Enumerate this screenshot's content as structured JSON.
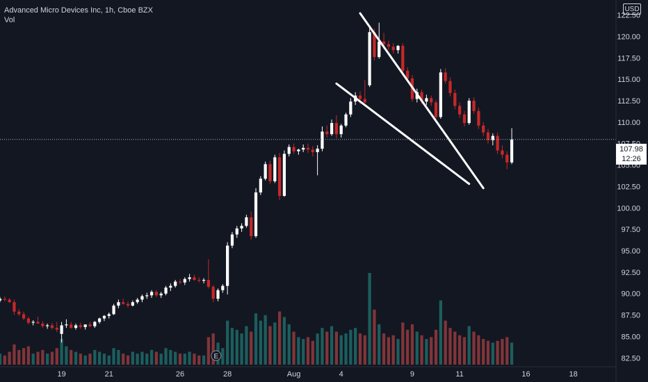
{
  "header": {
    "symbol_line": "Advanced Micro Devices Inc, 1h, Cboe BZX",
    "volume_label": "Vol"
  },
  "currency": "USD",
  "last_price": {
    "value": "107.98",
    "countdown": "12:26"
  },
  "event_marker": "E",
  "colors": {
    "background": "#131722",
    "up": "#ffffff",
    "down": "#c62828",
    "vol_up": "#26a69a",
    "vol_down": "#ef5350",
    "axis_text": "#d1d4dc",
    "trendline": "#ffffff"
  },
  "chart_data": {
    "type": "candlestick",
    "title": "Advanced Micro Devices Inc, 1h, Cboe BZX",
    "y_axis": {
      "position": "right",
      "range": [
        80.5,
        123.6
      ],
      "ticks": [
        "82.50",
        "85.00",
        "87.50",
        "90.00",
        "92.50",
        "95.00",
        "97.50",
        "100.00",
        "102.50",
        "105.00",
        "107.50",
        "110.00",
        "112.50",
        "115.00",
        "117.50",
        "120.00",
        "122.50",
        "125.00"
      ]
    },
    "x_axis": {
      "range": [
        0,
        130
      ],
      "ticks": [
        {
          "label": "19",
          "i": 13
        },
        {
          "label": "21",
          "i": 23
        },
        {
          "label": "26",
          "i": 38
        },
        {
          "label": "28",
          "i": 48
        },
        {
          "label": "Aug",
          "i": 62
        },
        {
          "label": "4",
          "i": 72
        },
        {
          "label": "9",
          "i": 87
        },
        {
          "label": "11",
          "i": 97
        },
        {
          "label": "16",
          "i": 111
        },
        {
          "label": "18",
          "i": 121
        }
      ]
    },
    "volume_max": 100,
    "candles": [
      [
        89.2,
        89.6,
        89.0,
        89.4,
        12
      ],
      [
        89.4,
        89.7,
        89.1,
        89.3,
        10
      ],
      [
        89.3,
        89.5,
        88.9,
        89.0,
        14
      ],
      [
        89.0,
        89.3,
        87.5,
        87.9,
        22
      ],
      [
        87.9,
        88.2,
        87.4,
        87.6,
        16
      ],
      [
        87.6,
        87.9,
        86.9,
        87.1,
        18
      ],
      [
        87.1,
        87.3,
        86.4,
        86.6,
        20
      ],
      [
        86.6,
        86.9,
        86.3,
        86.7,
        12
      ],
      [
        86.7,
        87.3,
        86.5,
        86.5,
        14
      ],
      [
        86.5,
        86.8,
        86.0,
        86.2,
        16
      ],
      [
        86.2,
        86.5,
        85.9,
        86.3,
        12
      ],
      [
        86.3,
        86.6,
        85.8,
        86.0,
        14
      ],
      [
        86.0,
        86.7,
        85.5,
        85.8,
        18
      ],
      [
        85.3,
        86.7,
        84.3,
        86.3,
        28
      ],
      [
        86.3,
        87.0,
        86.0,
        86.4,
        20
      ],
      [
        86.4,
        86.7,
        85.9,
        86.0,
        16
      ],
      [
        86.0,
        86.5,
        85.8,
        86.3,
        14
      ],
      [
        86.3,
        86.6,
        85.9,
        86.1,
        12
      ],
      [
        86.1,
        86.4,
        85.8,
        86.4,
        10
      ],
      [
        86.4,
        86.7,
        86.1,
        86.2,
        12
      ],
      [
        86.2,
        86.8,
        86.0,
        86.7,
        16
      ],
      [
        86.7,
        87.2,
        86.5,
        87.1,
        14
      ],
      [
        87.1,
        87.5,
        86.8,
        87.4,
        12
      ],
      [
        87.4,
        87.8,
        87.1,
        87.6,
        10
      ],
      [
        87.6,
        88.8,
        87.5,
        88.6,
        18
      ],
      [
        88.6,
        89.3,
        88.3,
        89.0,
        16
      ],
      [
        89.0,
        89.4,
        88.7,
        88.8,
        12
      ],
      [
        88.8,
        89.1,
        88.4,
        88.6,
        10
      ],
      [
        88.6,
        89.2,
        88.5,
        89.0,
        14
      ],
      [
        89.0,
        89.5,
        88.8,
        89.3,
        12
      ],
      [
        89.3,
        89.9,
        89.0,
        89.7,
        14
      ],
      [
        89.7,
        90.1,
        89.4,
        89.8,
        12
      ],
      [
        89.8,
        90.4,
        89.5,
        90.2,
        16
      ],
      [
        90.2,
        90.4,
        89.6,
        89.8,
        14
      ],
      [
        89.8,
        90.2,
        89.5,
        90.0,
        12
      ],
      [
        90.0,
        90.9,
        89.8,
        90.7,
        18
      ],
      [
        90.7,
        91.2,
        90.3,
        90.9,
        16
      ],
      [
        90.9,
        91.6,
        90.7,
        91.4,
        14
      ],
      [
        91.4,
        91.7,
        91.1,
        91.3,
        12
      ],
      [
        91.3,
        91.9,
        91.0,
        91.7,
        12
      ],
      [
        91.7,
        92.3,
        91.4,
        91.9,
        14
      ],
      [
        91.9,
        92.2,
        91.5,
        91.6,
        12
      ],
      [
        91.6,
        91.9,
        91.3,
        91.5,
        10
      ],
      [
        91.5,
        91.8,
        91.2,
        91.6,
        10
      ],
      [
        91.6,
        94.0,
        90.6,
        90.8,
        30
      ],
      [
        90.8,
        91.0,
        89.0,
        89.4,
        34
      ],
      [
        89.4,
        90.6,
        89.1,
        90.4,
        24
      ],
      [
        90.4,
        91.1,
        90.1,
        90.9,
        18
      ],
      [
        90.9,
        96.0,
        89.9,
        95.6,
        48
      ],
      [
        95.6,
        97.2,
        95.3,
        96.9,
        40
      ],
      [
        96.9,
        97.9,
        96.5,
        97.6,
        38
      ],
      [
        97.6,
        98.2,
        97.2,
        97.9,
        34
      ],
      [
        97.9,
        99.2,
        97.7,
        98.9,
        42
      ],
      [
        98.9,
        99.6,
        96.3,
        96.7,
        36
      ],
      [
        96.7,
        102.3,
        96.5,
        101.8,
        56
      ],
      [
        101.8,
        103.7,
        101.5,
        103.4,
        48
      ],
      [
        103.4,
        105.4,
        103.2,
        105.1,
        54
      ],
      [
        105.1,
        105.5,
        102.8,
        103.1,
        42
      ],
      [
        103.1,
        106.2,
        102.9,
        105.9,
        46
      ],
      [
        105.9,
        106.4,
        100.9,
        101.4,
        58
      ],
      [
        101.4,
        106.7,
        101.3,
        106.3,
        52
      ],
      [
        106.3,
        107.4,
        106.0,
        107.1,
        44
      ],
      [
        107.1,
        107.5,
        106.3,
        106.6,
        36
      ],
      [
        106.6,
        106.9,
        106.2,
        106.8,
        30
      ],
      [
        106.8,
        107.4,
        106.5,
        107.0,
        28
      ],
      [
        107.0,
        107.5,
        106.4,
        106.8,
        30
      ],
      [
        106.8,
        107.2,
        106.0,
        106.5,
        26
      ],
      [
        106.5,
        107.3,
        103.8,
        106.9,
        34
      ],
      [
        106.9,
        109.5,
        106.6,
        108.9,
        40
      ],
      [
        108.9,
        109.6,
        108.2,
        108.6,
        36
      ],
      [
        108.6,
        110.3,
        108.4,
        109.9,
        42
      ],
      [
        109.9,
        110.8,
        108.1,
        108.6,
        36
      ],
      [
        108.6,
        109.8,
        108.2,
        109.6,
        32
      ],
      [
        109.6,
        111.1,
        109.4,
        110.9,
        34
      ],
      [
        110.9,
        112.8,
        110.6,
        112.4,
        38
      ],
      [
        112.4,
        113.5,
        112.0,
        113.1,
        40
      ],
      [
        113.1,
        113.6,
        112.1,
        112.7,
        34
      ],
      [
        112.7,
        114.9,
        112.2,
        112.3,
        32
      ],
      [
        114.3,
        121.2,
        114.1,
        120.5,
        100
      ],
      [
        120.5,
        120.9,
        117.2,
        117.6,
        60
      ],
      [
        117.6,
        121.6,
        117.4,
        119.4,
        44
      ],
      [
        119.4,
        120.4,
        118.5,
        119.1,
        34
      ],
      [
        119.1,
        119.5,
        118.4,
        118.8,
        30
      ],
      [
        118.8,
        119.2,
        118.0,
        118.4,
        32
      ],
      [
        118.4,
        119.0,
        118.0,
        118.9,
        28
      ],
      [
        118.9,
        119.2,
        115.5,
        116.0,
        46
      ],
      [
        116.0,
        116.4,
        114.7,
        115.1,
        38
      ],
      [
        115.1,
        115.5,
        112.4,
        112.7,
        44
      ],
      [
        112.7,
        113.9,
        112.3,
        113.5,
        36
      ],
      [
        113.5,
        113.8,
        112.1,
        112.4,
        32
      ],
      [
        112.4,
        113.2,
        112.0,
        112.8,
        28
      ],
      [
        112.8,
        113.1,
        111.9,
        112.3,
        30
      ],
      [
        112.3,
        112.6,
        110.3,
        110.6,
        38
      ],
      [
        110.6,
        116.2,
        110.4,
        115.8,
        70
      ],
      [
        115.8,
        116.3,
        114.5,
        114.8,
        48
      ],
      [
        114.8,
        115.2,
        113.0,
        113.4,
        40
      ],
      [
        113.4,
        113.8,
        111.5,
        111.9,
        36
      ],
      [
        111.9,
        112.3,
        110.5,
        110.9,
        32
      ],
      [
        110.9,
        111.3,
        109.5,
        109.9,
        30
      ],
      [
        109.9,
        112.8,
        109.7,
        112.5,
        42
      ],
      [
        112.5,
        112.9,
        111.0,
        111.3,
        36
      ],
      [
        111.3,
        111.7,
        109.2,
        109.6,
        32
      ],
      [
        109.6,
        110.0,
        108.4,
        108.8,
        28
      ],
      [
        108.8,
        109.2,
        107.5,
        107.9,
        26
      ],
      [
        107.9,
        108.7,
        107.3,
        108.4,
        24
      ],
      [
        108.4,
        108.8,
        106.3,
        106.7,
        26
      ],
      [
        106.7,
        107.3,
        105.8,
        106.2,
        28
      ],
      [
        106.2,
        106.6,
        104.5,
        105.3,
        30
      ],
      [
        105.3,
        109.3,
        105.1,
        107.98,
        24
      ]
    ],
    "trendlines": [
      {
        "name": "upper",
        "from": [
          76,
          122.7
        ],
        "to": [
          102,
          102.3
        ]
      },
      {
        "name": "lower",
        "from": [
          71,
          114.5
        ],
        "to": [
          99,
          102.8
        ]
      }
    ]
  }
}
